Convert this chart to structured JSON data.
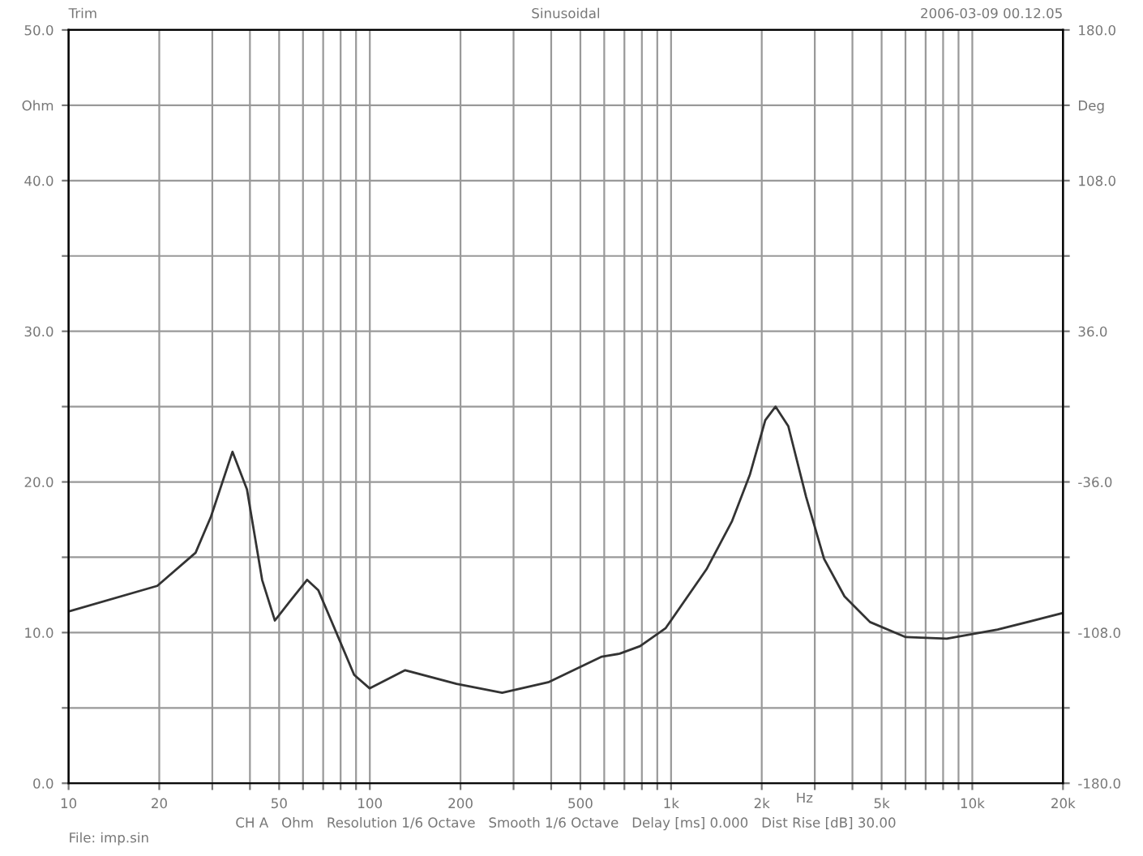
{
  "chart_data": {
    "type": "line",
    "title": "Sinusoidal",
    "xlabel": "Hz",
    "log": "x",
    "grid": true,
    "marker": "none",
    "line_style": "solid",
    "annotations": [
      "Trim",
      "2006-03-09 00.12.05",
      "CH A   Ohm   Resolution 1/6 Octave   Smooth 1/6 Octave   Delay [ms] 0.000   Dist Rise [dB] 30.00",
      "File: imp.sin"
    ],
    "xlim": [
      10,
      20000
    ],
    "xticks": [
      {
        "value": 10,
        "label": "10"
      },
      {
        "value": 20,
        "label": "20"
      },
      {
        "value": 30,
        "label": null
      },
      {
        "value": 40,
        "label": null
      },
      {
        "value": 50,
        "label": "50"
      },
      {
        "value": 60,
        "label": null
      },
      {
        "value": 70,
        "label": null
      },
      {
        "value": 80,
        "label": null
      },
      {
        "value": 90,
        "label": null
      },
      {
        "value": 100,
        "label": "100"
      },
      {
        "value": 200,
        "label": "200"
      },
      {
        "value": 300,
        "label": null
      },
      {
        "value": 400,
        "label": null
      },
      {
        "value": 500,
        "label": "500"
      },
      {
        "value": 600,
        "label": null
      },
      {
        "value": 700,
        "label": null
      },
      {
        "value": 800,
        "label": null
      },
      {
        "value": 900,
        "label": null
      },
      {
        "value": 1000,
        "label": "1k"
      },
      {
        "value": 2000,
        "label": "2k"
      },
      {
        "value": 3000,
        "label": null
      },
      {
        "value": 4000,
        "label": null
      },
      {
        "value": 5000,
        "label": "5k"
      },
      {
        "value": 6000,
        "label": null
      },
      {
        "value": 7000,
        "label": null
      },
      {
        "value": 8000,
        "label": null
      },
      {
        "value": 9000,
        "label": null
      },
      {
        "value": 10000,
        "label": "10k"
      },
      {
        "value": 20000,
        "label": "20k"
      }
    ],
    "ylim": [
      0,
      50
    ],
    "yticks": [
      {
        "value": 0,
        "label": "0.0"
      },
      {
        "value": 5,
        "label": null
      },
      {
        "value": 10,
        "label": "10.0"
      },
      {
        "value": 15,
        "label": null
      },
      {
        "value": 20,
        "label": "20.0"
      },
      {
        "value": 25,
        "label": null
      },
      {
        "value": 30,
        "label": "30.0"
      },
      {
        "value": 35,
        "label": null
      },
      {
        "value": 40,
        "label": "40.0"
      },
      {
        "value": 45,
        "label": "Ohm"
      },
      {
        "value": 50,
        "label": "50.0"
      }
    ],
    "y2lim": [
      -180,
      180
    ],
    "y2ticks": [
      {
        "value": -180,
        "label": "-180.0"
      },
      {
        "value": -144,
        "label": null
      },
      {
        "value": -108,
        "label": "-108.0"
      },
      {
        "value": -72,
        "label": null
      },
      {
        "value": -36,
        "label": "-36.0"
      },
      {
        "value": 0,
        "label": null
      },
      {
        "value": 36,
        "label": "36.0"
      },
      {
        "value": 72,
        "label": null
      },
      {
        "value": 108,
        "label": "108.0"
      },
      {
        "value": 144,
        "label": "Deg"
      },
      {
        "value": 180,
        "label": "180.0"
      }
    ],
    "series": [
      {
        "color": "#333333",
        "x": [
          10,
          19.7,
          26.4,
          29.7,
          35.0,
          39.1,
          43.9,
          48.4,
          54.4,
          61.9,
          67.5,
          77.4,
          88.7,
          99.8,
          131,
          194,
          275,
          391,
          589,
          675,
          789,
          960,
          1311,
          1594,
          1828,
          2055,
          2222,
          2450,
          2808,
          3220,
          3765,
          4575,
          6010,
          8225,
          12140,
          20000
        ],
        "values": [
          11.4,
          13.1,
          15.3,
          17.7,
          22.0,
          19.5,
          13.5,
          10.8,
          12.1,
          13.5,
          12.8,
          10.0,
          7.2,
          6.3,
          7.5,
          6.6,
          6.0,
          6.7,
          8.4,
          8.6,
          9.1,
          10.3,
          14.2,
          17.4,
          20.5,
          24.1,
          25.0,
          23.7,
          19.0,
          14.9,
          12.4,
          10.7,
          9.7,
          9.6,
          10.2,
          11.3
        ]
      }
    ]
  }
}
